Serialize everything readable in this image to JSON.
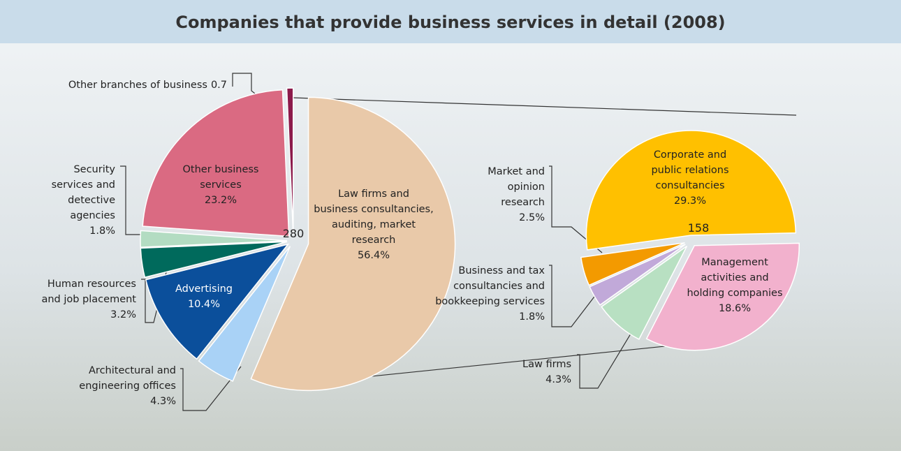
{
  "title": "Companies that provide business services in detail (2008)",
  "chart_data": [
    {
      "type": "pie",
      "total": 280,
      "categories": [
        "Law firms and\nbusiness consultancies,\nauditing, market\nresearch",
        "Architectural and\nengineering offices",
        "Advertising",
        "Human resources\nand job placement",
        "Security\nservices and\ndetective\nagencies",
        "Other business\nservices",
        "Other branches of business"
      ],
      "values": [
        56.4,
        4.3,
        10.4,
        3.2,
        1.8,
        23.2,
        0.7
      ],
      "value_labels": [
        "56.4%",
        "4.3%",
        "10.4%",
        "3.2%",
        "1.8%",
        "23.2%",
        "0.7"
      ],
      "colors": [
        "#e9c9a9",
        "#a9d2f6",
        "#0b4f9b",
        "#006a5c",
        "#b3dcc2",
        "#da6a82",
        "#8c1a4b"
      ]
    },
    {
      "type": "pie",
      "total": 158,
      "categories": [
        "Corporate and\npublic relations\nconsultancies",
        "Management\nactivities and\nholding companies",
        "Law firms",
        "Business and tax\nconsultancies and\nbookkeeping services",
        "Market and\nopinion\nresearch"
      ],
      "values": [
        29.3,
        18.6,
        4.3,
        1.8,
        2.5
      ],
      "value_labels": [
        "29.3%",
        "18.6%",
        "4.3%",
        "1.8%",
        "2.5%"
      ],
      "colors": [
        "#ffc000",
        "#f2b1cd",
        "#b8e0c2",
        "#c1a9d9",
        "#f39a00"
      ]
    }
  ]
}
